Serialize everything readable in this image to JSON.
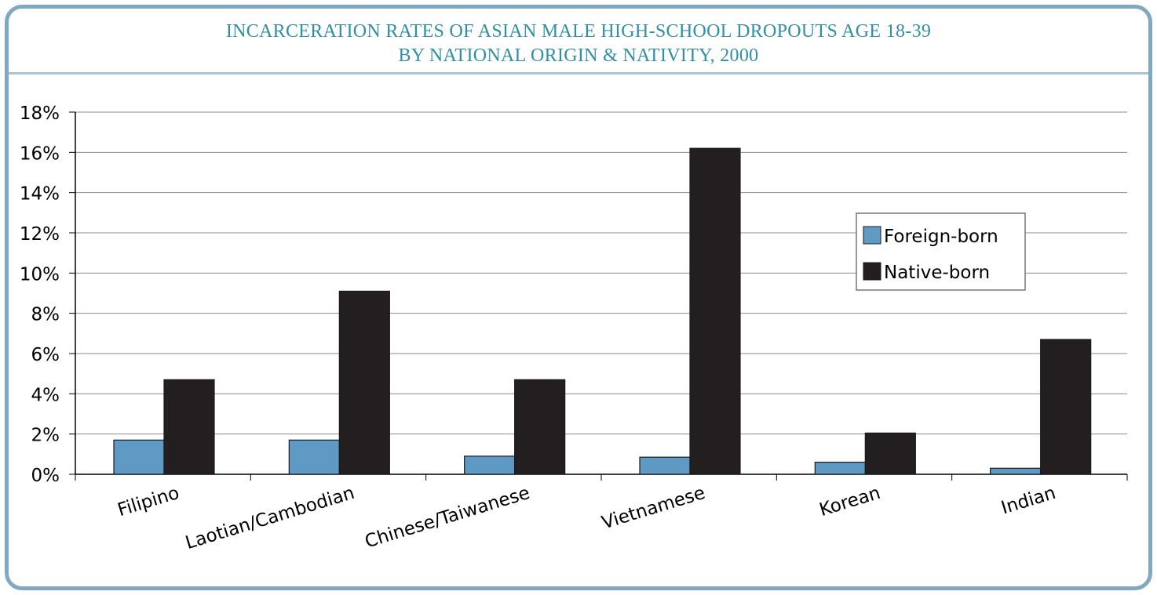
{
  "chart_data": {
    "type": "bar",
    "title": [
      "INCARCERATION RATES OF ASIAN MALE HIGH-SCHOOL DROPOUTS AGE 18-39",
      "BY NATIONAL ORIGIN & NATIVITY, 2000"
    ],
    "categories": [
      "Filipino",
      "Laotian/Cambodian",
      "Chinese/Taiwanese",
      "Vietnamese",
      "Korean",
      "Indian"
    ],
    "series": [
      {
        "name": "Foreign-born",
        "color": "#5f9ac4",
        "values": [
          1.7,
          1.7,
          0.9,
          0.85,
          0.6,
          0.3
        ]
      },
      {
        "name": "Native-born",
        "color": "#231f20",
        "values": [
          4.7,
          9.1,
          4.7,
          16.2,
          2.05,
          6.7
        ]
      }
    ],
    "y_ticks": [
      "0%",
      "2%",
      "4%",
      "6%",
      "8%",
      "10%",
      "12%",
      "14%",
      "16%",
      "18%"
    ],
    "ylim": [
      0,
      18
    ],
    "y_unit": "%",
    "grid": true,
    "legend_position": "right"
  }
}
